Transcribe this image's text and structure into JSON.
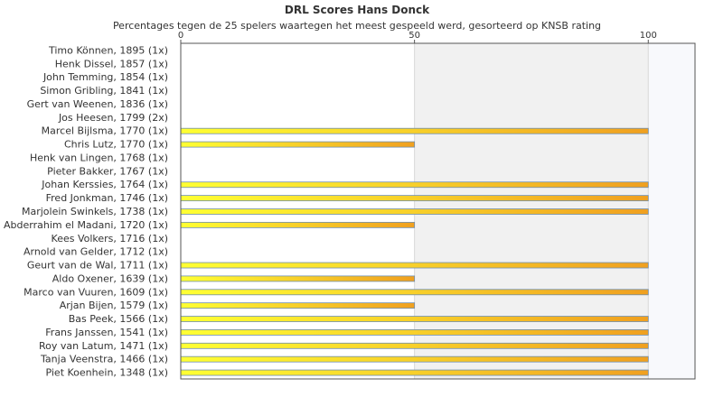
{
  "chart_data": {
    "type": "bar",
    "orientation": "horizontal",
    "title": "DRL Scores Hans Donck",
    "subtitle": "Percentages tegen de 25 spelers waartegen het meest gespeeld werd, gesorteerd op KNSB rating",
    "xlim": [
      0,
      110
    ],
    "xticks": [
      0,
      50,
      100
    ],
    "categories": [
      "Timo Können, 1895 (1x)",
      "Henk Dissel, 1857 (1x)",
      "John Temming, 1854 (1x)",
      "Simon Gribling, 1841 (1x)",
      "Gert van Weenen, 1836 (1x)",
      "Jos Heesen, 1799 (2x)",
      "Marcel Bijlsma, 1770 (1x)",
      "Chris Lutz, 1770 (1x)",
      "Henk van Lingen, 1768 (1x)",
      "Pieter Bakker, 1767 (1x)",
      "Johan Kerssies, 1764 (1x)",
      "Fred Jonkman, 1746 (1x)",
      "Marjolein Swinkels, 1738 (1x)",
      "Abderrahim el Madani, 1720 (1x)",
      "Kees Volkers, 1716 (1x)",
      "Arnold van Gelder, 1712 (1x)",
      "Geurt van de Wal, 1711 (1x)",
      "Aldo Oxener, 1639 (1x)",
      "Marco van Vuuren, 1609 (1x)",
      "Arjan Bijen, 1579 (1x)",
      "Bas Peek, 1566 (1x)",
      "Frans Janssen, 1541 (1x)",
      "Roy van Latum, 1471 (1x)",
      "Tanja Veenstra, 1466 (1x)",
      "Piet Koenhein, 1348 (1x)"
    ],
    "values": [
      0,
      0,
      0,
      0,
      0,
      0,
      100,
      50,
      0,
      0,
      100,
      100,
      100,
      50,
      0,
      0,
      100,
      50,
      100,
      50,
      100,
      100,
      100,
      100,
      100
    ],
    "grid": true,
    "legend": "none",
    "colors": {
      "bar_start": "#ffff33",
      "bar_end": "#f0a020",
      "bar_stroke": "#6f8fb0",
      "band_light": "#f8f9fc",
      "band_mid": "#f1f1f1",
      "axis": "#555555",
      "grid": "#d8d8d8"
    }
  }
}
